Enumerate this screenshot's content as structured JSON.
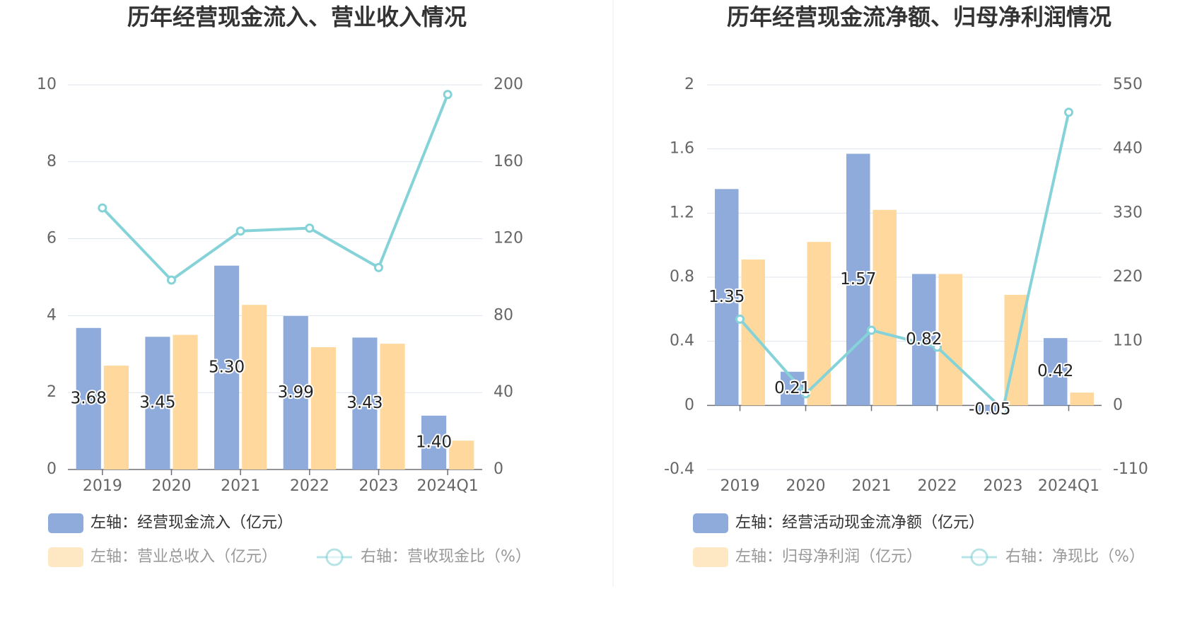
{
  "colors": {
    "bar_primary": "#8eabdb",
    "bar_secondary": "#fed89d",
    "line": "#85d3d8",
    "text_axis": "#666666",
    "title": "#333333",
    "grid": "#dde3ee",
    "divider": "#eeeeee"
  },
  "chart_data": [
    {
      "type": "bar",
      "title": "历年经营现金流入、营业收入情况",
      "categories": [
        "2019",
        "2020",
        "2021",
        "2022",
        "2023",
        "2024Q1"
      ],
      "y_left": {
        "min": 0,
        "max": 10,
        "ticks": [
          "0",
          "2",
          "4",
          "6",
          "8",
          "10"
        ]
      },
      "y_right": {
        "min": 0,
        "max": 200,
        "ticks": [
          "0",
          "40",
          "80",
          "120",
          "160",
          "200"
        ]
      },
      "grid": true,
      "series": [
        {
          "name": "左轴：经营现金流入（亿元）",
          "type": "bar",
          "axis": "left",
          "values": [
            3.68,
            3.45,
            5.3,
            3.99,
            3.43,
            1.4
          ],
          "labels": [
            "3.68",
            "3.45",
            "5.30",
            "3.99",
            "3.43",
            "1.40"
          ],
          "color": "#8eabdb"
        },
        {
          "name": "左轴：营业总收入（亿元）",
          "type": "bar",
          "axis": "left",
          "values": [
            2.7,
            3.5,
            4.28,
            3.18,
            3.27,
            0.75
          ],
          "color": "#fed89d"
        },
        {
          "name": "右轴：营收现金比（%）",
          "type": "line",
          "axis": "right",
          "values": [
            136.0,
            98.5,
            124.0,
            125.5,
            105.0,
            195.0
          ],
          "color": "#85d3d8"
        }
      ]
    },
    {
      "type": "bar",
      "title": "历年经营现金流净额、归母净利润情况",
      "categories": [
        "2019",
        "2020",
        "2021",
        "2022",
        "2023",
        "2024Q1"
      ],
      "y_left": {
        "min": -0.4,
        "max": 2,
        "ticks": [
          "-0.4",
          "0",
          "0.4",
          "0.8",
          "1.2",
          "1.6",
          "2"
        ]
      },
      "y_right": {
        "min": -110,
        "max": 550,
        "ticks": [
          "-110",
          "0",
          "110",
          "220",
          "330",
          "440",
          "550"
        ]
      },
      "grid": true,
      "series": [
        {
          "name": "左轴：经营活动现金流净额（亿元）",
          "type": "bar",
          "axis": "left",
          "values": [
            1.35,
            0.21,
            1.57,
            0.82,
            -0.05,
            0.42
          ],
          "labels": [
            "1.35",
            "0.21",
            "1.57",
            "0.82",
            "-0.05",
            "0.42"
          ],
          "color": "#8eabdb"
        },
        {
          "name": "左轴：归母净利润（亿元）",
          "type": "bar",
          "axis": "left",
          "values": [
            0.91,
            1.02,
            1.22,
            0.82,
            0.69,
            0.08
          ],
          "color": "#fed89d"
        },
        {
          "name": "右轴：净现比（%）",
          "type": "line",
          "axis": "right",
          "values": [
            148.0,
            20.0,
            129.0,
            100.0,
            -7.0,
            503.0
          ],
          "color": "#85d3d8"
        }
      ]
    }
  ]
}
